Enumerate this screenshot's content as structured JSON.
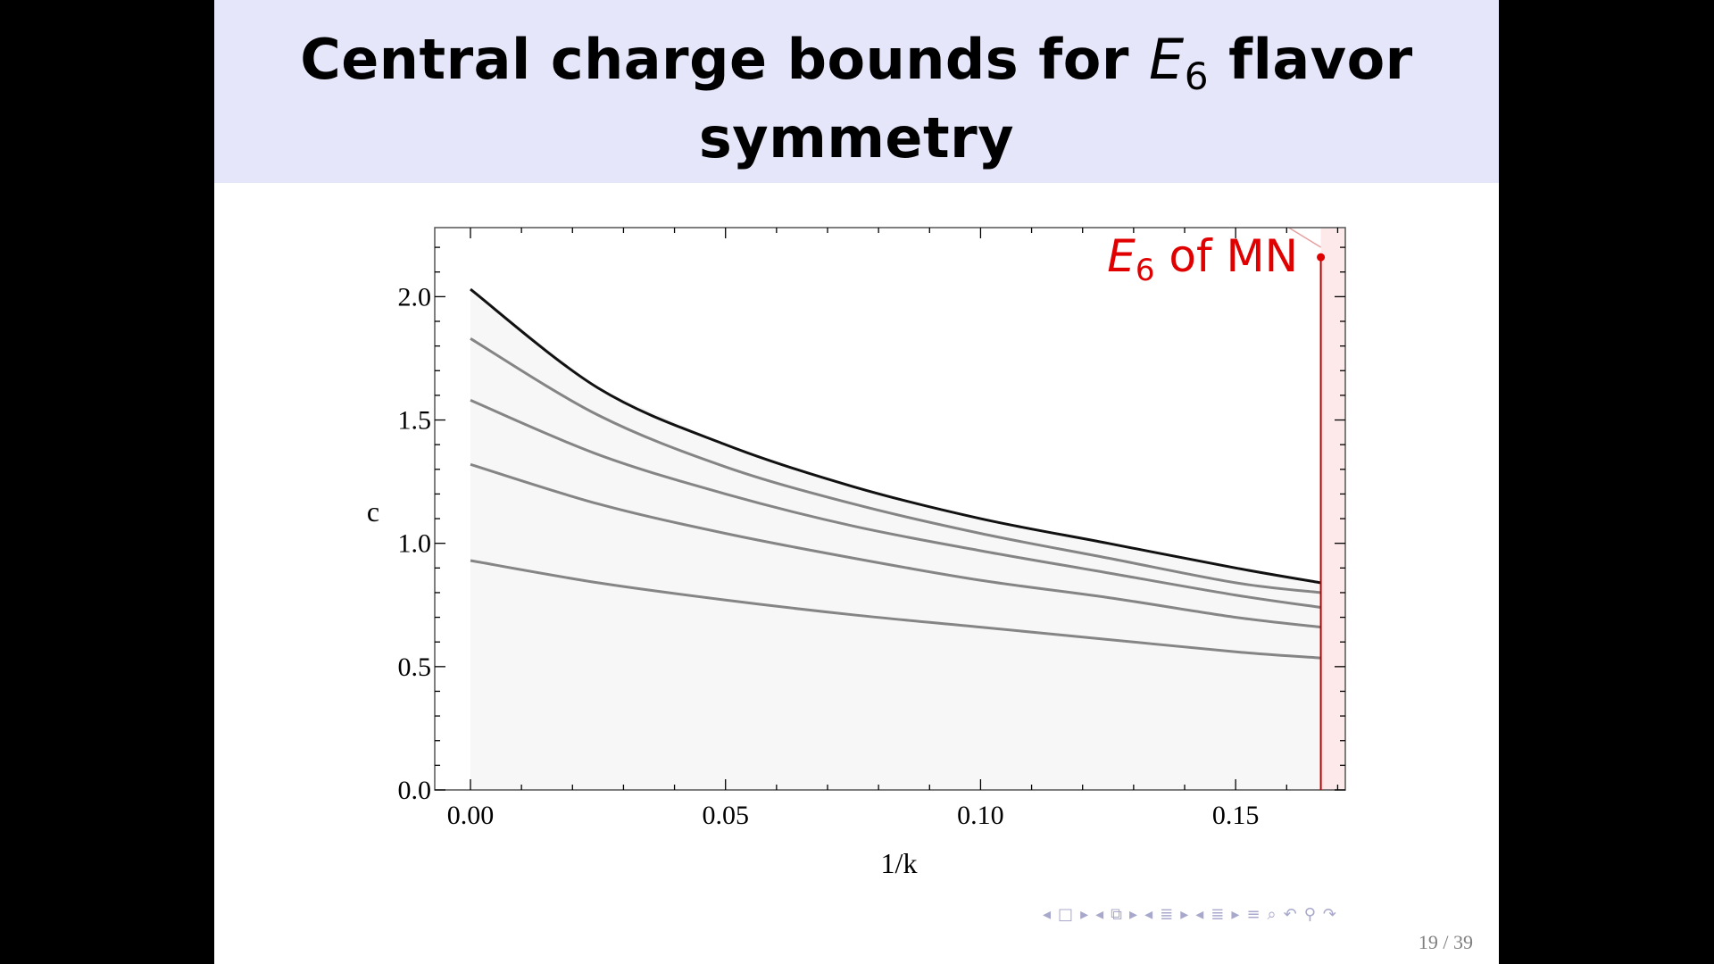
{
  "slide": {
    "title_line1_prefix": "Central charge bounds for ",
    "title_symbol": "E",
    "title_subscript": "6",
    "title_line1_suffix": " flavor",
    "title_line2": "symmetry",
    "page_number": "19 / 39",
    "navigation_icons": [
      "left-arrow-icon",
      "frame-icon",
      "right-arrow-icon",
      "left-arrow-icon",
      "frames-stack-icon",
      "right-arrow-icon",
      "left-arrow-icon",
      "section-icon",
      "right-arrow-icon",
      "left-arrow-icon",
      "subsection-icon",
      "right-arrow-icon",
      "outline-icon",
      "search-icon",
      "undo-icon",
      "zoom-icon",
      "redo-icon"
    ]
  },
  "chart_data": {
    "type": "line",
    "title": "",
    "xlabel": "1/k",
    "ylabel": "c",
    "xlim": [
      -0.007,
      0.1715
    ],
    "ylim": [
      0,
      2.28
    ],
    "xticks": [
      0.0,
      0.05,
      0.1,
      0.15
    ],
    "xtick_labels": [
      "0.00",
      "0.05",
      "0.10",
      "0.15"
    ],
    "yticks": [
      0.0,
      0.5,
      1.0,
      1.5,
      2.0
    ],
    "ytick_labels": [
      "0.0",
      "0.5",
      "1.0",
      "1.5",
      "2.0"
    ],
    "grid": false,
    "region_fill": "#f7f7f7",
    "series": [
      {
        "color": "#111111",
        "x": [
          0,
          0.025,
          0.05,
          0.075,
          0.1,
          0.125,
          0.15,
          0.1667
        ],
        "y": [
          2.03,
          1.63,
          1.4,
          1.23,
          1.1,
          1.0,
          0.9,
          0.84
        ]
      },
      {
        "color": "#858585",
        "x": [
          0,
          0.025,
          0.05,
          0.075,
          0.1,
          0.125,
          0.15,
          0.1667
        ],
        "y": [
          1.83,
          1.52,
          1.31,
          1.16,
          1.04,
          0.94,
          0.84,
          0.8
        ]
      },
      {
        "color": "#858585",
        "x": [
          0,
          0.025,
          0.05,
          0.075,
          0.1,
          0.125,
          0.15,
          0.1667
        ],
        "y": [
          1.58,
          1.36,
          1.2,
          1.07,
          0.97,
          0.88,
          0.79,
          0.74
        ]
      },
      {
        "color": "#858585",
        "x": [
          0,
          0.025,
          0.05,
          0.075,
          0.1,
          0.125,
          0.15,
          0.1667
        ],
        "y": [
          1.32,
          1.16,
          1.04,
          0.94,
          0.85,
          0.78,
          0.7,
          0.66
        ]
      },
      {
        "color": "#858585",
        "x": [
          0,
          0.025,
          0.05,
          0.075,
          0.1,
          0.125,
          0.15,
          0.1667
        ],
        "y": [
          0.93,
          0.84,
          0.77,
          0.71,
          0.66,
          0.61,
          0.56,
          0.535
        ]
      }
    ],
    "vertical_line": {
      "x": 0.1667,
      "color": "#c00000"
    },
    "excluded_region": {
      "x_from": 0.1667,
      "color": "#fde9e9"
    },
    "annotation": {
      "symbol": "E",
      "subscript": "6",
      "suffix": " of MN",
      "point": {
        "x": 0.1667,
        "y": 2.16
      },
      "color": "#e00000"
    }
  }
}
